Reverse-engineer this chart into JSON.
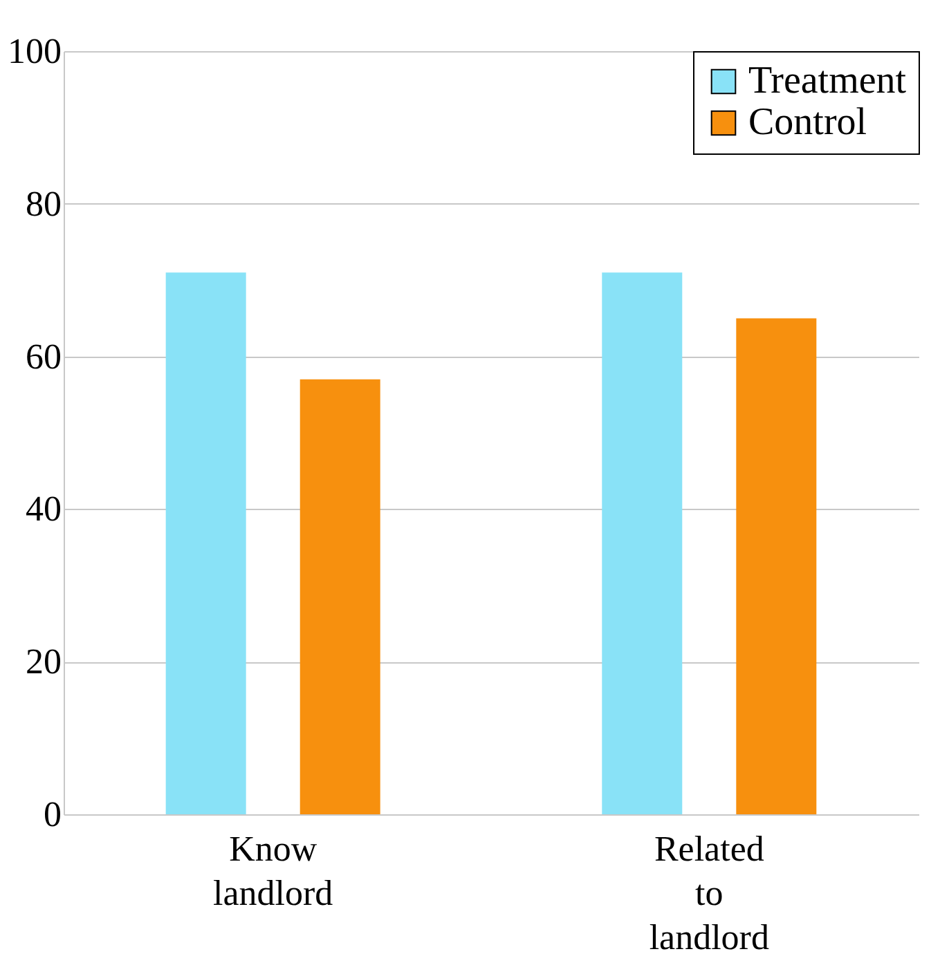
{
  "chart_data": {
    "type": "bar",
    "categories": [
      "Know landlord",
      "Related to landlord"
    ],
    "series": [
      {
        "name": "Treatment",
        "color": "#89e2f7",
        "values": [
          71,
          71
        ]
      },
      {
        "name": "Control",
        "color": "#f7900e",
        "values": [
          57,
          65
        ]
      }
    ],
    "ylim": [
      0,
      100
    ],
    "yticks": [
      0,
      20,
      40,
      60,
      80,
      100
    ],
    "grid": "y",
    "legend": "top right"
  }
}
